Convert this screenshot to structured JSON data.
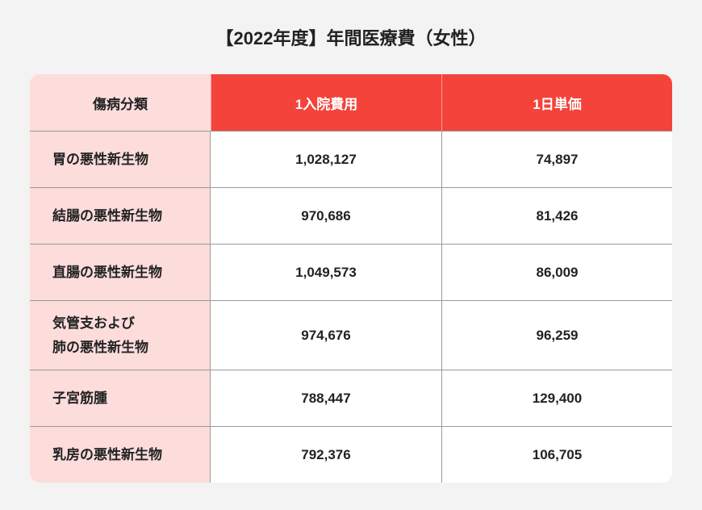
{
  "header": {
    "title": "【2022年度】年間医療費（女性）"
  },
  "table": {
    "columns": [
      "傷病分類",
      "1入院費用",
      "1日単価"
    ],
    "rows": [
      [
        [
          "胃の悪性新生物"
        ],
        "1,028,127",
        "74,897"
      ],
      [
        [
          "結腸の悪性新生物"
        ],
        "970,686",
        "81,426"
      ],
      [
        [
          "直腸の悪性新生物"
        ],
        "1,049,573",
        "86,009"
      ],
      [
        [
          "気管支および",
          "肺の悪性新生物"
        ],
        "974,676",
        "96,259"
      ],
      [
        [
          "子宮筋腫"
        ],
        "788,447",
        "129,400"
      ],
      [
        [
          "乳房の悪性新生物"
        ],
        "792,376",
        "106,705"
      ]
    ]
  }
}
